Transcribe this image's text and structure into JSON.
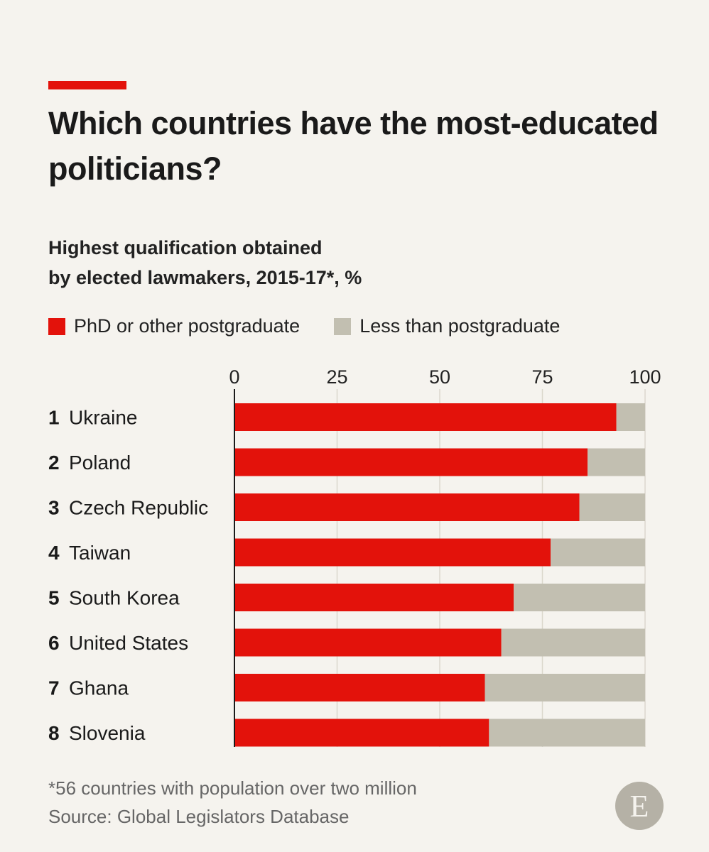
{
  "header": {
    "title": "Which countries have the most-educated politicians?",
    "subtitle_line1": "Highest qualification obtained",
    "subtitle_line2": "by elected lawmakers, 2015-17*, %"
  },
  "footer": {
    "note": "*56 countries with population over two million",
    "source": "Source: Global Legislators Database",
    "logo_letter": "E"
  },
  "colors": {
    "accent": "#e3120b",
    "postgraduate": "#e3120b",
    "less": "#c2bfb1",
    "background": "#f5f3ee"
  },
  "chart_data": {
    "type": "bar",
    "orientation": "horizontal",
    "stacked": true,
    "categories": [
      "Ukraine",
      "Poland",
      "Czech Republic",
      "Taiwan",
      "South Korea",
      "United States",
      "Ghana",
      "Slovenia"
    ],
    "ranks": [
      "1",
      "2",
      "3",
      "4",
      "5",
      "6",
      "7",
      "8"
    ],
    "series": [
      {
        "name": "PhD or other postgraduate",
        "values": [
          93,
          86,
          84,
          77,
          68,
          65,
          61,
          62
        ]
      },
      {
        "name": "Less than postgraduate",
        "values": [
          7,
          14,
          16,
          23,
          32,
          35,
          39,
          38
        ]
      }
    ],
    "xlim": [
      0,
      100
    ],
    "xticks": [
      0,
      25,
      50,
      75,
      100
    ],
    "grid": true,
    "legend_position": "top"
  }
}
